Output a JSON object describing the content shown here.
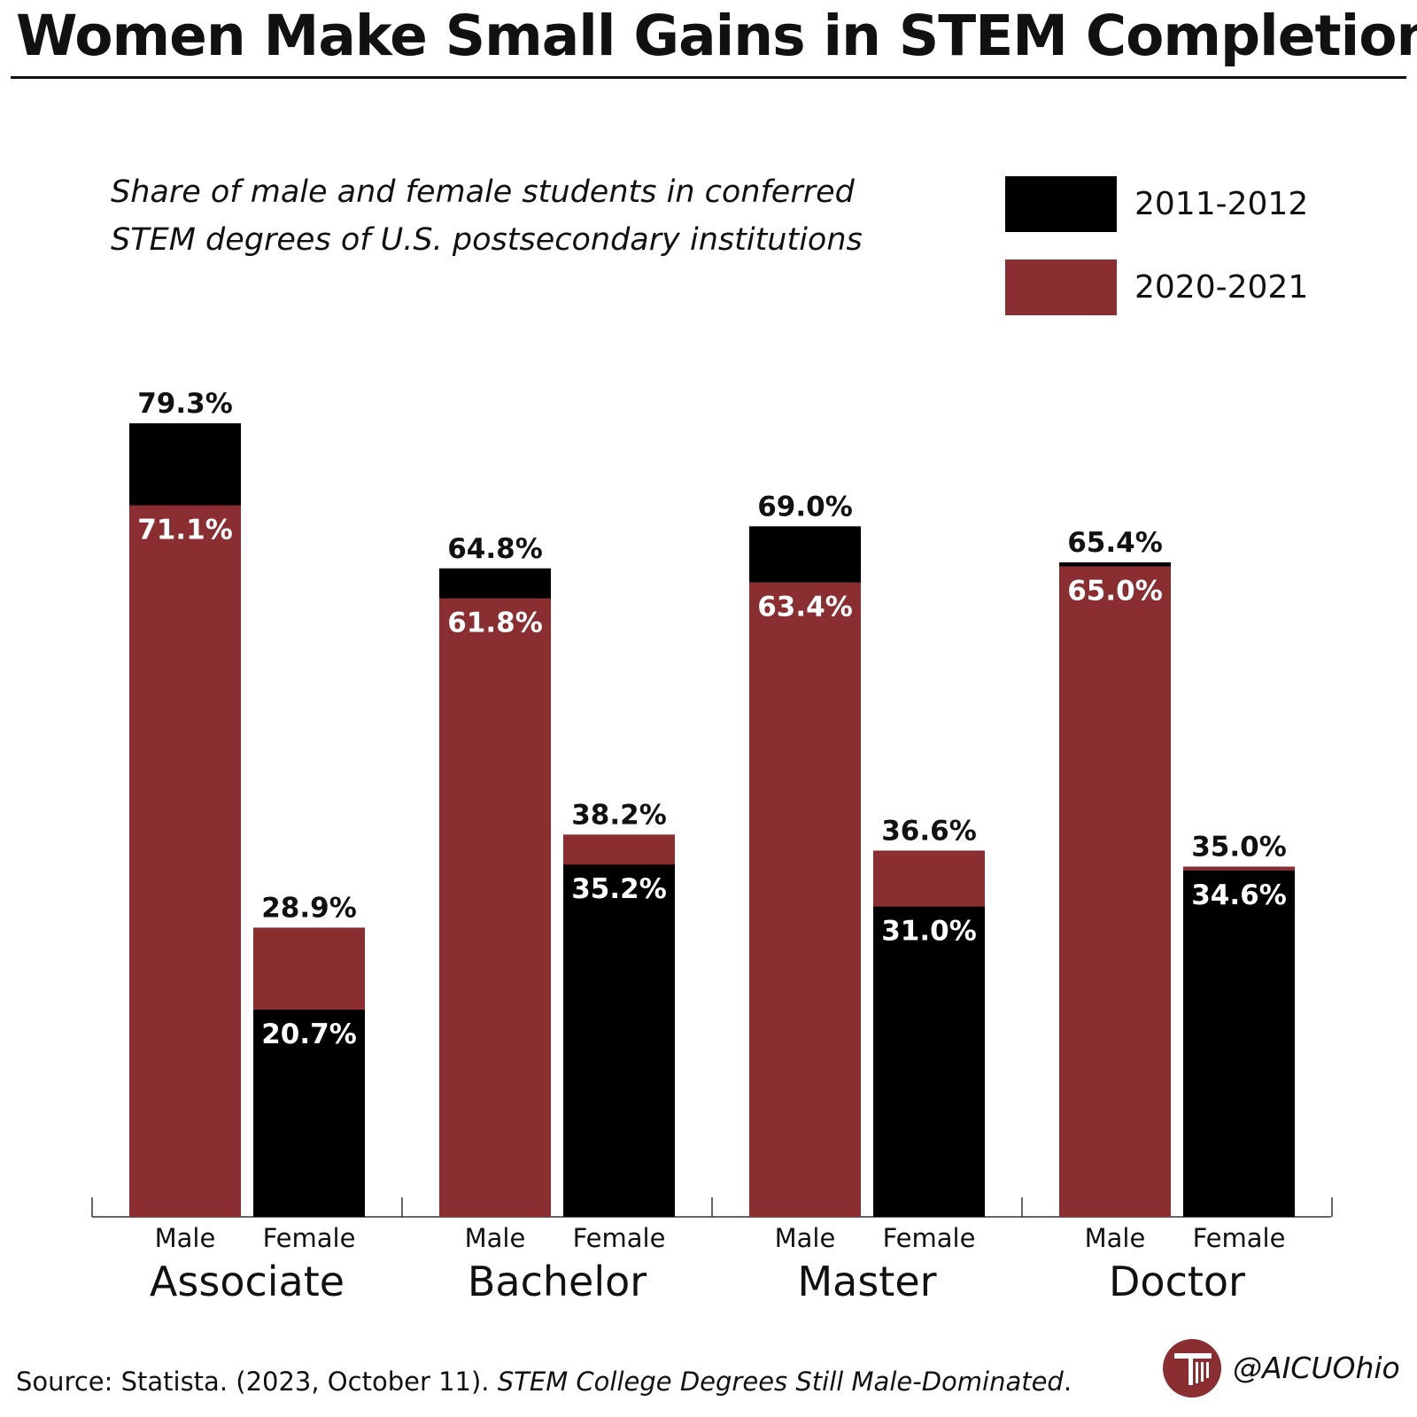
{
  "header": {
    "title": "Women Make Small Gains in STEM Completion",
    "subtitle": "Share of male and female students in conferred STEM degrees of U.S. postsecondary institutions"
  },
  "legend": {
    "items": [
      {
        "label": "2011-2012",
        "color": "#000000"
      },
      {
        "label": "2020-2021",
        "color": "#8B2E31"
      }
    ]
  },
  "chart_data": {
    "type": "bar",
    "title": "Women Make Small Gains in STEM Completion",
    "subtitle": "Share of male and female students in conferred STEM degrees of U.S. postsecondary institutions",
    "categories": [
      "Associate",
      "Bachelor",
      "Master",
      "Doctor"
    ],
    "subcategories": [
      "Male",
      "Female"
    ],
    "series": [
      {
        "name": "2011-2012",
        "color": "#000000",
        "values": [
          [
            79.3,
            20.7
          ],
          [
            64.8,
            35.2
          ],
          [
            69.0,
            31.0
          ],
          [
            65.4,
            34.6
          ]
        ]
      },
      {
        "name": "2020-2021",
        "color": "#8B2E31",
        "values": [
          [
            71.1,
            28.9
          ],
          [
            61.8,
            38.2
          ],
          [
            63.4,
            36.6
          ],
          [
            65.0,
            35.0
          ]
        ]
      }
    ],
    "value_labels": [
      [
        [
          "79.3%",
          "71.1%"
        ],
        [
          "28.9%",
          "20.7%"
        ]
      ],
      [
        [
          "64.8%",
          "61.8%"
        ],
        [
          "38.2%",
          "35.2%"
        ]
      ],
      [
        [
          "69.0%",
          "63.4%"
        ],
        [
          "36.6%",
          "31.0%"
        ]
      ],
      [
        [
          "65.4%",
          "65.0%"
        ],
        [
          "35.0%",
          "34.6%"
        ]
      ]
    ],
    "unit": "%",
    "ylim": [
      0,
      80
    ],
    "grid": false,
    "legend_position": "top-right"
  },
  "footer": {
    "source_prefix": "Source: Statista. (2023, October 11). ",
    "source_title": "STEM College Degrees Still Male-Dominated",
    "source_suffix": ".",
    "handle": "@AICUOhio"
  }
}
